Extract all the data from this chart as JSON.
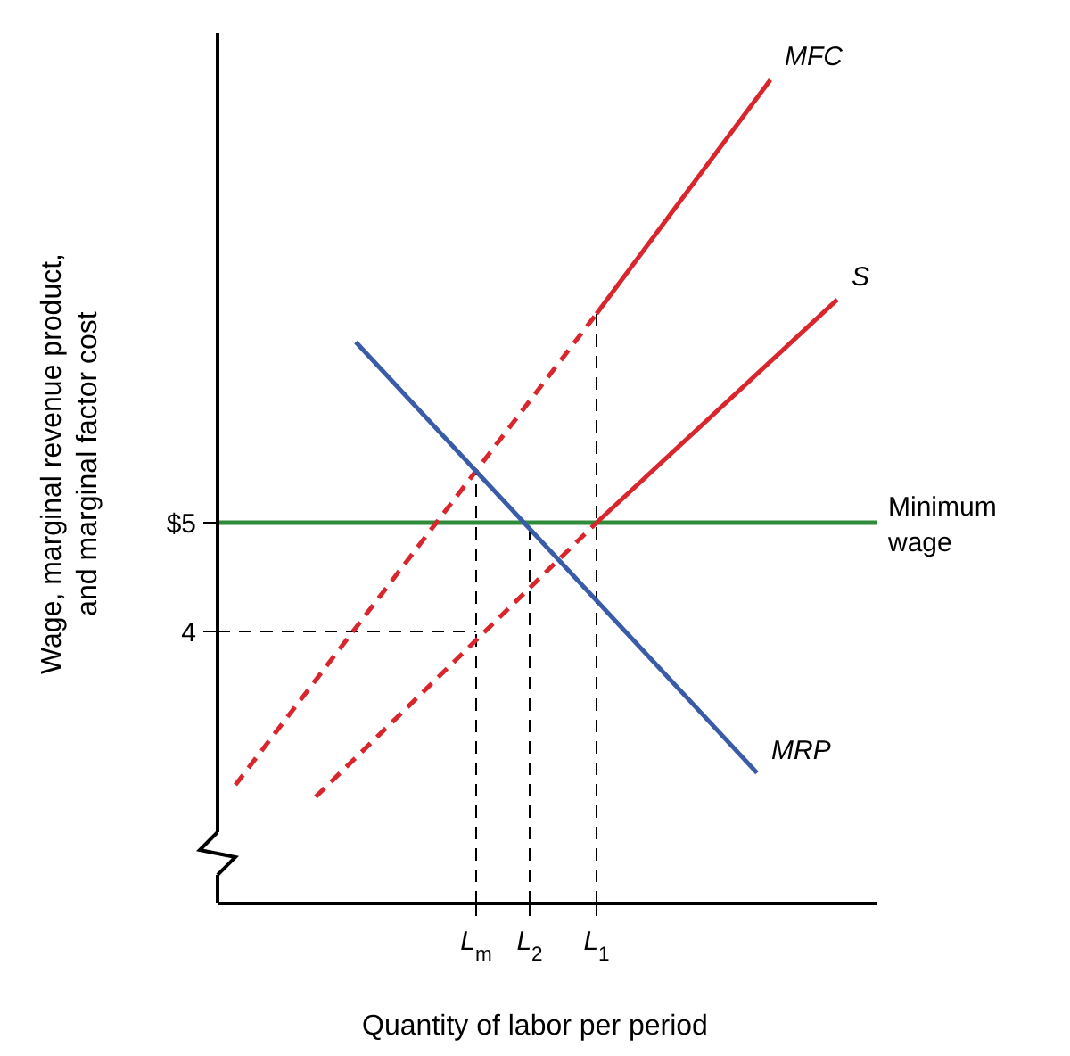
{
  "chart_data": {
    "type": "line",
    "xlabel": "Quantity of labor per period",
    "ylabel": "Wage, marginal revenue product, and marginal factor cost",
    "categories": [
      null,
      null,
      null,
      null,
      null,
      null,
      null,
      null,
      null,
      null,
      null,
      null,
      null,
      null,
      null,
      null,
      null,
      null,
      null,
      "L$_{m}$",
      null,
      null,
      null,
      "L$_{2}$",
      null,
      null,
      null,
      null,
      "L$_{1}$",
      null,
      null,
      null,
      null,
      null,
      null,
      null,
      null,
      null,
      null,
      null,
      null,
      null,
      null,
      null,
      null,
      null,
      null,
      null,
      null,
      null
    ],
    "ylim": [
      1.5,
      9.5
    ],
    "yticks": [
      4,
      {
        "value": 5,
        "label": "$5"
      }
    ],
    "series": [
      {
        "name": "MFC",
        "color": "#d9262c",
        "line_style": "solid",
        "values": [
          null,
          null,
          null,
          null,
          null,
          null,
          null,
          null,
          null,
          null,
          null,
          null,
          null,
          null,
          null,
          null,
          null,
          null,
          null,
          null,
          null,
          null,
          null,
          null,
          null,
          null,
          null,
          null,
          6.92,
          null,
          null,
          null,
          null,
          null,
          null,
          null,
          null,
          null,
          null,
          null,
          null,
          9.07,
          null,
          null,
          null,
          null,
          null,
          null,
          null,
          null
        ]
      },
      {
        "color": "#d9262c",
        "line_style": "dashed",
        "values": [
          null,
          2.59,
          null,
          null,
          null,
          null,
          null,
          null,
          null,
          null,
          null,
          null,
          null,
          null,
          null,
          null,
          null,
          null,
          null,
          null,
          null,
          null,
          null,
          null,
          null,
          null,
          null,
          null,
          6.92,
          null,
          null,
          null,
          null,
          null,
          null,
          null,
          null,
          null,
          null,
          null,
          null,
          null,
          null,
          null,
          null,
          null,
          null,
          null,
          null,
          null
        ]
      },
      {
        "name": "S",
        "color": "#d9262c",
        "line_style": "solid",
        "values": [
          null,
          null,
          null,
          null,
          null,
          null,
          null,
          null,
          null,
          null,
          null,
          null,
          null,
          null,
          null,
          null,
          null,
          null,
          null,
          null,
          null,
          null,
          null,
          null,
          null,
          null,
          null,
          null,
          5,
          null,
          null,
          null,
          null,
          null,
          null,
          null,
          null,
          null,
          null,
          null,
          null,
          null,
          null,
          null,
          null,
          null,
          7.05,
          null,
          null,
          null
        ]
      },
      {
        "color": "#d9262c",
        "line_style": "dashed",
        "values": [
          null,
          null,
          null,
          null,
          null,
          null,
          null,
          2.48,
          null,
          null,
          null,
          null,
          null,
          null,
          null,
          null,
          null,
          null,
          null,
          null,
          null,
          null,
          null,
          null,
          null,
          null,
          null,
          null,
          5,
          null,
          null,
          null,
          null,
          null,
          null,
          null,
          null,
          null,
          null,
          null,
          null,
          null,
          null,
          null,
          null,
          null,
          null,
          null,
          null,
          null
        ]
      },
      {
        "name": "MRP",
        "color": "#3a5ba8",
        "line_style": "solid",
        "values": [
          null,
          null,
          null,
          null,
          null,
          null,
          null,
          null,
          null,
          null,
          6.66,
          null,
          null,
          null,
          null,
          null,
          null,
          null,
          null,
          null,
          null,
          null,
          null,
          null,
          null,
          null,
          null,
          null,
          null,
          null,
          null,
          null,
          null,
          null,
          null,
          null,
          null,
          null,
          null,
          null,
          2.7,
          null,
          null,
          null,
          null,
          null,
          null,
          null,
          null,
          null
        ]
      }
    ],
    "ref_lines": [
      {
        "axis": "y",
        "value": 5,
        "label": "Minimum wage",
        "color": "#2e8b3a",
        "line_style": "solid"
      },
      {
        "axis": "y",
        "value": 4,
        "color": "#000000",
        "line_style": "dashed"
      },
      {
        "axis": "x",
        "value": "L$_{m}$",
        "color": "#000000",
        "line_style": "dashed"
      },
      {
        "axis": "x",
        "value": "L$_{2}$",
        "color": "#000000",
        "line_style": "dashed"
      },
      {
        "axis": "x",
        "value": "L$_{1}$",
        "color": "#000000",
        "line_style": "dashed"
      }
    ],
    "grid": false,
    "marker": "none"
  }
}
